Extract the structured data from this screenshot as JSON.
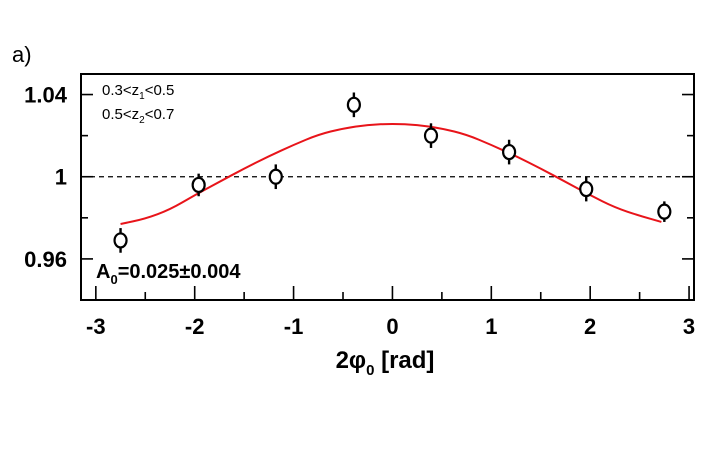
{
  "panel_label": "a)",
  "annotations": {
    "z1_base": "0.3<z",
    "z1_sub": "1",
    "z1_tail": "<0.5",
    "z2_base": "0.5<z",
    "z2_sub": "2",
    "z2_tail": "<0.7",
    "fit_base": "A",
    "fit_sub": "0",
    "fit_tail": "=0.025±0.004"
  },
  "chart_data": {
    "type": "scatter",
    "xlabel_base": "2φ",
    "xlabel_sub": "0",
    "xlabel_tail": " [rad]",
    "xlim": [
      -3.15,
      3.05
    ],
    "ylim": [
      0.94,
      1.05
    ],
    "xticks": [
      -3,
      -2,
      -1,
      0,
      1,
      2,
      3
    ],
    "xtick_labels": [
      "-3",
      "-2",
      "-1",
      "0",
      "1",
      "2",
      "3"
    ],
    "yticks": [
      0.96,
      1.0,
      1.04
    ],
    "ytick_labels": [
      "0.96",
      "1",
      "1.04"
    ],
    "reference_line_y": 1.0,
    "series": [
      {
        "points": [
          {
            "x": -2.75,
            "y": 0.969,
            "err": 0.006
          },
          {
            "x": -1.96,
            "y": 0.996,
            "err": 0.0055
          },
          {
            "x": -1.18,
            "y": 1.0,
            "err": 0.006
          },
          {
            "x": -0.39,
            "y": 1.035,
            "err": 0.006
          },
          {
            "x": 0.39,
            "y": 1.02,
            "err": 0.006
          },
          {
            "x": 1.18,
            "y": 1.012,
            "err": 0.006
          },
          {
            "x": 1.96,
            "y": 0.994,
            "err": 0.006
          },
          {
            "x": 2.75,
            "y": 0.983,
            "err": 0.005
          }
        ]
      }
    ],
    "fit_curve": {
      "x_range": [
        -2.75,
        2.72
      ],
      "points": [
        [
          -2.75,
          0.977
        ],
        [
          -2.5,
          0.9795
        ],
        [
          -2.25,
          0.984
        ],
        [
          -2.0,
          0.991
        ],
        [
          -1.75,
          0.9975
        ],
        [
          -1.5,
          1.004
        ],
        [
          -1.25,
          1.01
        ],
        [
          -1.0,
          1.0155
        ],
        [
          -0.75,
          1.0205
        ],
        [
          -0.5,
          1.0235
        ],
        [
          -0.25,
          1.0253
        ],
        [
          0.0,
          1.0258
        ],
        [
          0.25,
          1.0253
        ],
        [
          0.5,
          1.0235
        ],
        [
          0.75,
          1.0205
        ],
        [
          1.0,
          1.0155
        ],
        [
          1.25,
          1.01
        ],
        [
          1.5,
          1.004
        ],
        [
          1.75,
          0.9975
        ],
        [
          2.0,
          0.991
        ],
        [
          2.25,
          0.985
        ],
        [
          2.5,
          0.981
        ],
        [
          2.72,
          0.978
        ]
      ],
      "color": "#e8141a"
    },
    "marker_color": "#000000",
    "frame_color": "#000000"
  }
}
